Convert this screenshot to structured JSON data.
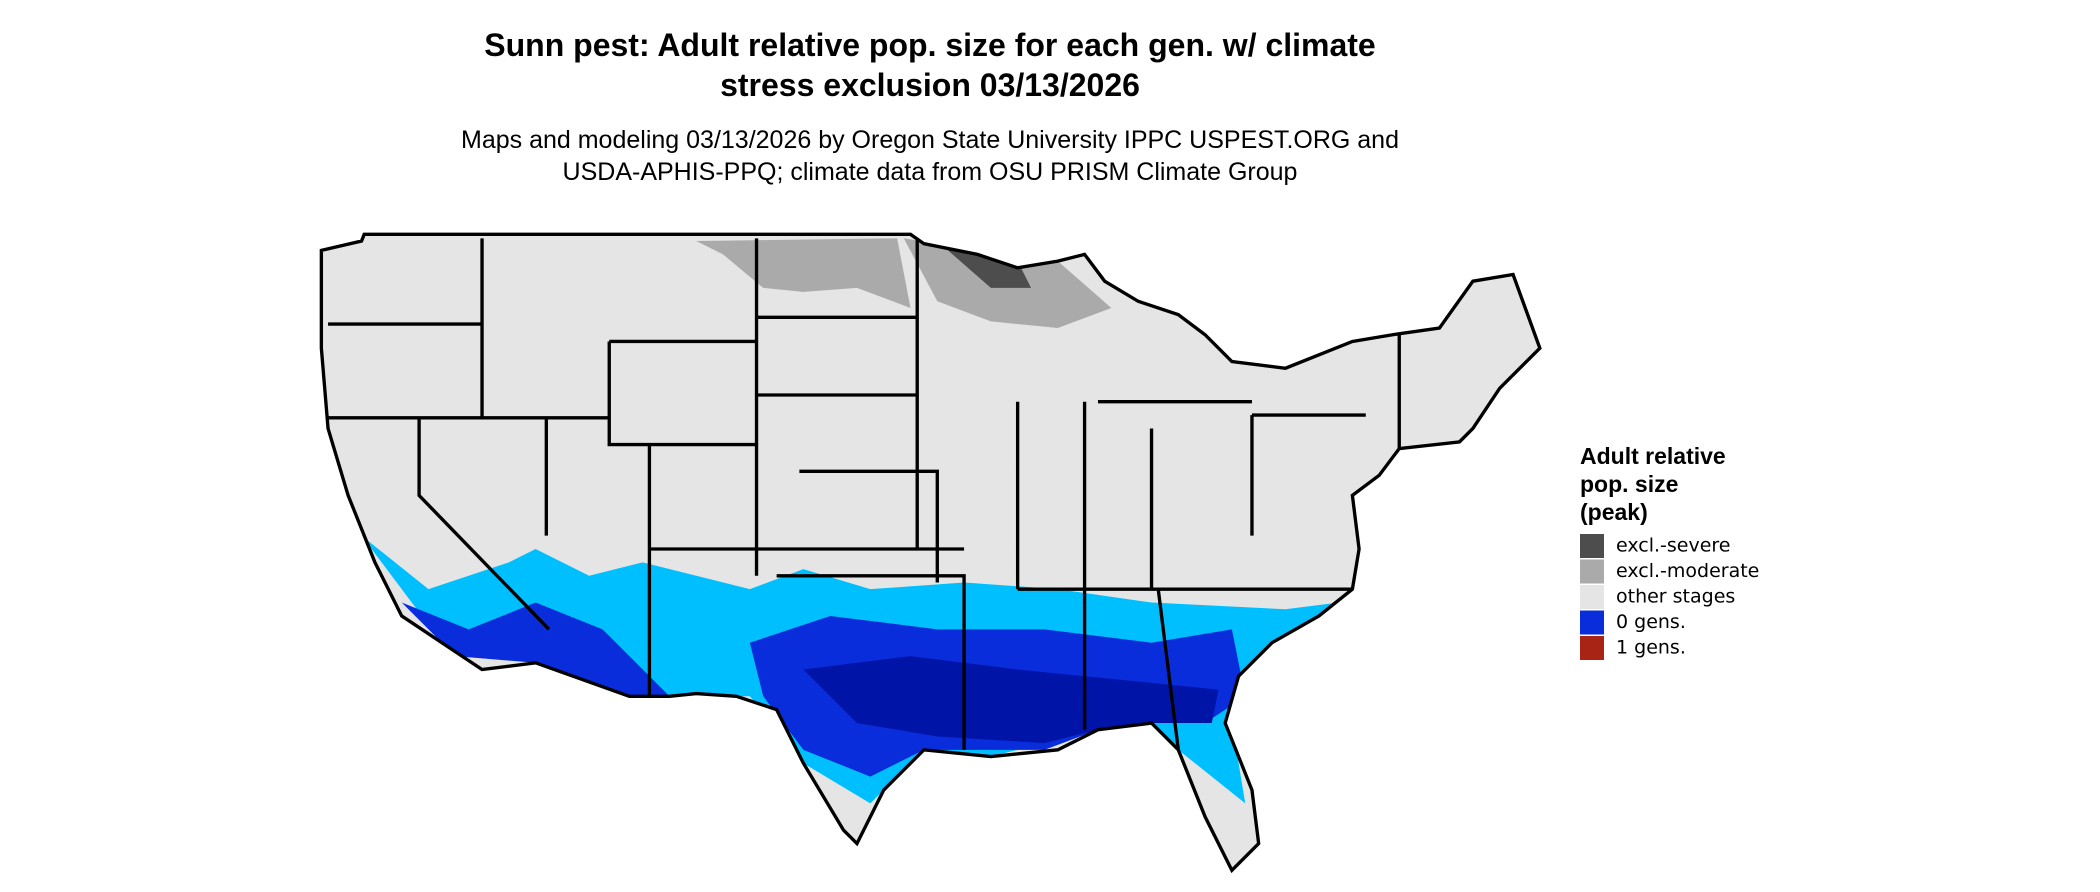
{
  "title": [
    "Sunn pest: Adult relative pop. size for each gen. w/ climate",
    "stress exclusion 03/13/2026"
  ],
  "subtitle": [
    "Maps and modeling 03/13/2026 by Oregon State University IPPC USPEST.ORG and",
    "USDA-APHIS-PPQ; climate data from OSU PRISM Climate Group"
  ],
  "legend": {
    "title": [
      "Adult relative",
      "pop. size",
      "(peak)"
    ],
    "items": [
      {
        "label": "excl.-severe",
        "color": "#4d4d4d"
      },
      {
        "label": "excl.-moderate",
        "color": "#aaaaaa"
      },
      {
        "label": "other stages",
        "color": "#e5e5e5"
      },
      {
        "label": "0 gens.",
        "color": "#0a2ddc"
      },
      {
        "label": "1 gens.",
        "color": "#a82516"
      }
    ]
  }
}
